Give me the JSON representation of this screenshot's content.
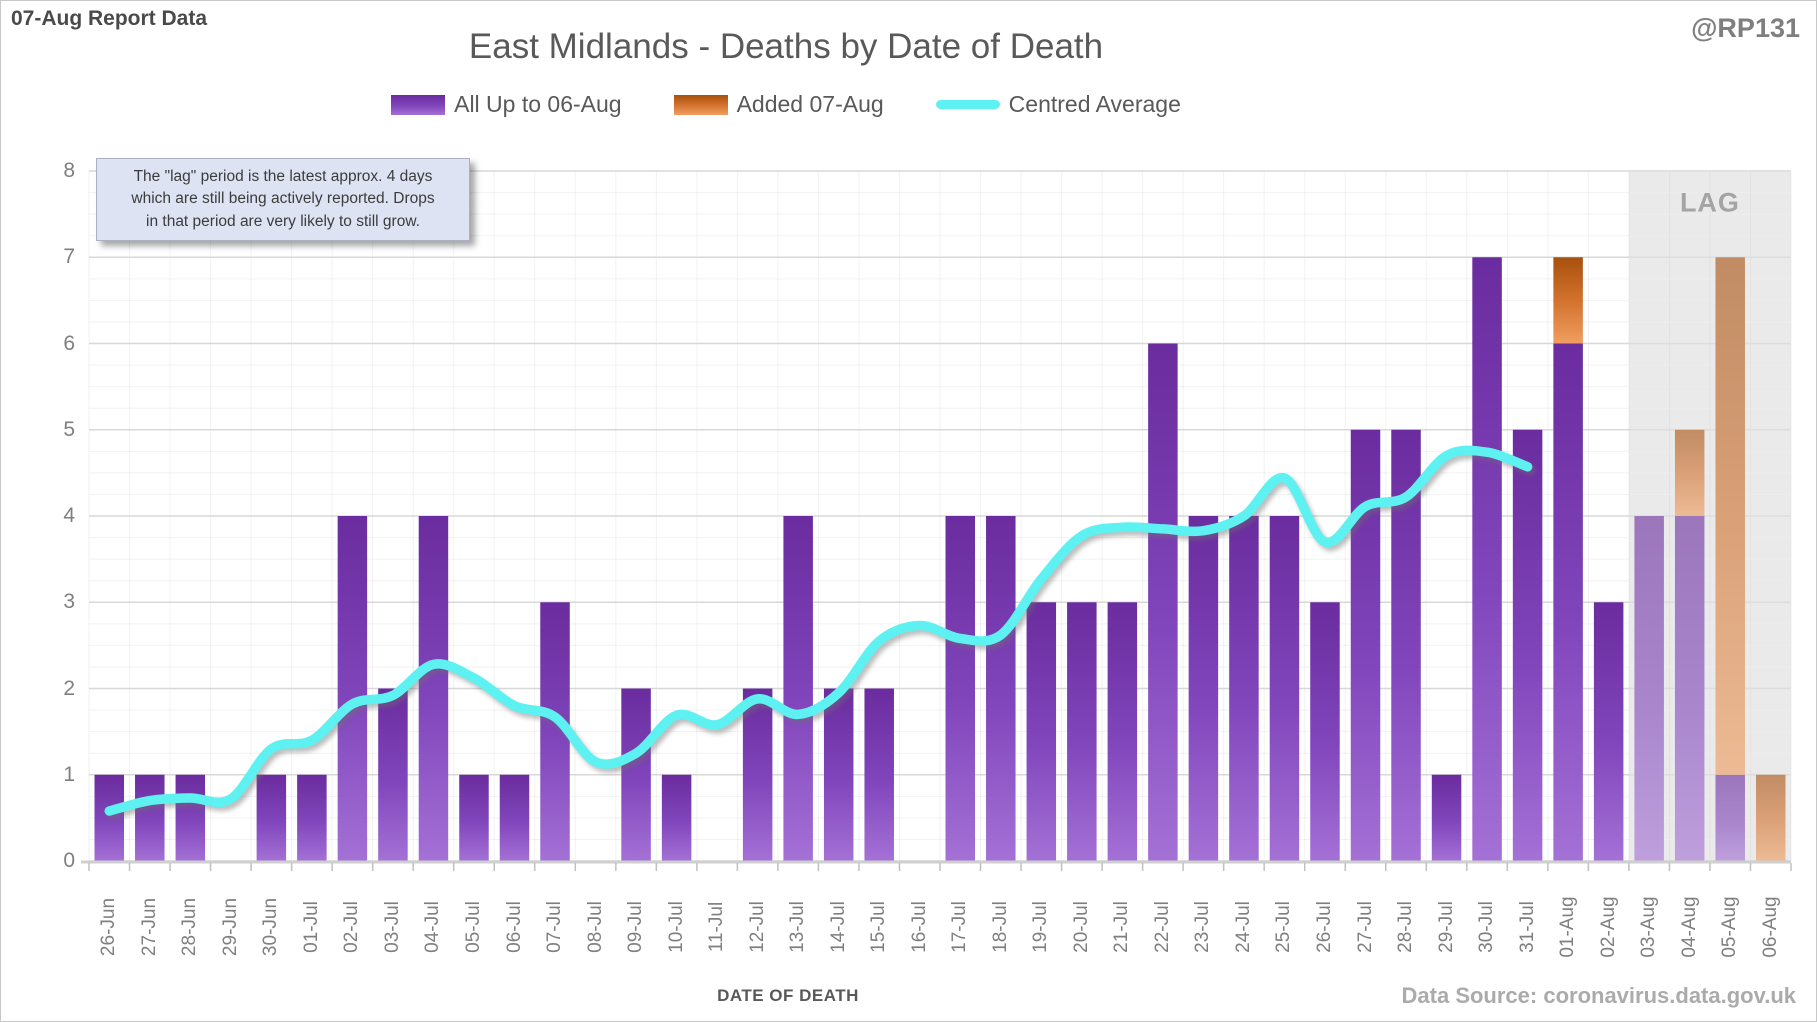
{
  "header": {
    "report_label": "07-Aug Report Data",
    "handle": "@RP131",
    "title": "East Midlands - Deaths by Date of Death"
  },
  "legend": [
    {
      "label": "All Up to 06-Aug",
      "swatch": "purple-gradient-rect"
    },
    {
      "label": "Added 07-Aug",
      "swatch": "orange-gradient-rect"
    },
    {
      "label": "Centred Average",
      "swatch": "cyan-line"
    }
  ],
  "callout": {
    "text": "The \"lag\" period is the latest approx. 4 days\nwhich are still being actively reported.  Drops\nin that period are very likely to still grow."
  },
  "lag": {
    "label": "LAG",
    "start_category": "03-Aug"
  },
  "axes": {
    "x_title": "DATE OF DEATH",
    "y_ticks": [
      0,
      1,
      2,
      3,
      4,
      5,
      6,
      7,
      8
    ]
  },
  "footer": {
    "source": "Data Source: coronavirus.data.gov.uk"
  },
  "colors": {
    "purple_top": "#6a2c9e",
    "purple_mid": "#8146bc",
    "purple_bottom": "#a471d6",
    "orange_top": "#a8500d",
    "orange_mid": "#d2722e",
    "orange_bottom": "#f09e5f",
    "line": "#5ef1f1",
    "lag_bg": "#ededed",
    "grid_major": "#d8d8d8",
    "grid_minor": "#f2f2f2",
    "axis_line": "#cfcfcf",
    "tick": "#c0c0c0"
  },
  "chart_data": {
    "type": "bar",
    "stacked": true,
    "ylim": [
      0,
      8
    ],
    "y_major_unit": 1,
    "y_minor_unit": 0.25,
    "grid": true,
    "legend_position": "top-center",
    "lag_start_index": 38,
    "categories": [
      "26-Jun",
      "27-Jun",
      "28-Jun",
      "29-Jun",
      "30-Jun",
      "01-Jul",
      "02-Jul",
      "03-Jul",
      "04-Jul",
      "05-Jul",
      "06-Jul",
      "07-Jul",
      "08-Jul",
      "09-Jul",
      "10-Jul",
      "11-Jul",
      "12-Jul",
      "13-Jul",
      "14-Jul",
      "15-Jul",
      "16-Jul",
      "17-Jul",
      "18-Jul",
      "19-Jul",
      "20-Jul",
      "21-Jul",
      "22-Jul",
      "23-Jul",
      "24-Jul",
      "25-Jul",
      "26-Jul",
      "27-Jul",
      "28-Jul",
      "29-Jul",
      "30-Jul",
      "31-Jul",
      "01-Aug",
      "02-Aug",
      "03-Aug",
      "04-Aug",
      "05-Aug",
      "06-Aug"
    ],
    "series": [
      {
        "name": "All Up to 06-Aug",
        "kind": "bar",
        "values": [
          1,
          1,
          1,
          0,
          1,
          1,
          4,
          2,
          4,
          1,
          1,
          3,
          0,
          2,
          1,
          0,
          2,
          4,
          2,
          2,
          0,
          4,
          4,
          3,
          3,
          3,
          6,
          4,
          4,
          4,
          3,
          5,
          5,
          1,
          7,
          5,
          6,
          3,
          4,
          4,
          1,
          0
        ]
      },
      {
        "name": "Added 07-Aug",
        "kind": "bar",
        "values": [
          0,
          0,
          0,
          0,
          0,
          0,
          0,
          0,
          0,
          0,
          0,
          0,
          0,
          0,
          0,
          0,
          0,
          0,
          0,
          0,
          0,
          0,
          0,
          0,
          0,
          0,
          0,
          0,
          0,
          0,
          0,
          0,
          0,
          0,
          0,
          0,
          1,
          0,
          0,
          1,
          6,
          1
        ]
      },
      {
        "name": "Centred Average",
        "kind": "line",
        "values": [
          0.58,
          0.7,
          0.73,
          0.72,
          1.3,
          1.4,
          1.82,
          1.92,
          2.28,
          2.12,
          1.8,
          1.67,
          1.15,
          1.25,
          1.69,
          1.58,
          1.88,
          1.7,
          1.95,
          2.55,
          2.73,
          2.58,
          2.62,
          3.27,
          3.77,
          3.87,
          3.85,
          3.83,
          4.0,
          4.44,
          3.7,
          4.11,
          4.22,
          4.7,
          4.74,
          4.57,
          null,
          null,
          null,
          null,
          null,
          null
        ]
      }
    ]
  }
}
